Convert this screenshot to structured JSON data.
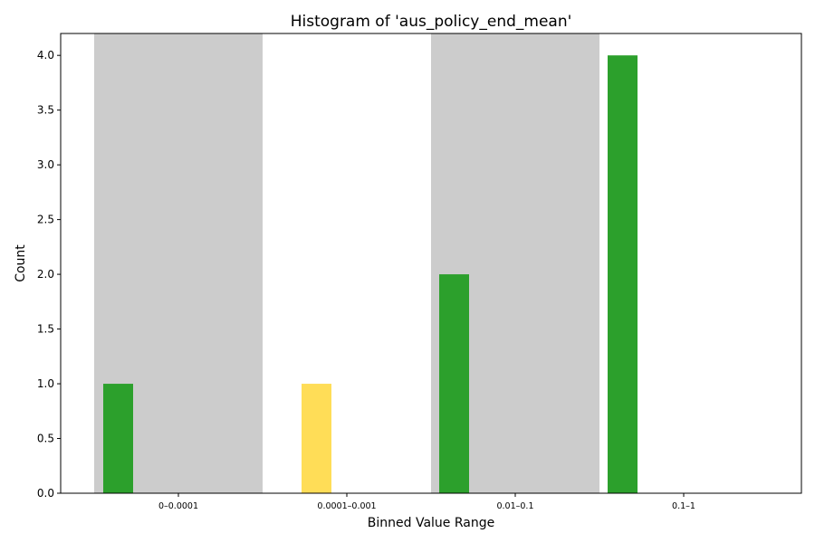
{
  "chart_data": {
    "type": "bar",
    "title": "Histogram of 'aus_policy_end_mean'",
    "xlabel": "Binned Value Range",
    "ylabel": "Count",
    "categories": [
      "0–0.0001",
      "0.0001–0.001",
      "0.01–0.1",
      "0.1–1"
    ],
    "bars": [
      {
        "category": "0–0.0001",
        "value": 1,
        "color": "#2ca02c"
      },
      {
        "category": "0.0001–0.001",
        "value": 1,
        "color": "#ffdd57"
      },
      {
        "category": "0.01–0.1",
        "value": 2,
        "color": "#2ca02c"
      },
      {
        "category": "0.1–1",
        "value": 4,
        "color": "#2ca02c"
      }
    ],
    "shaded_bands": [
      "0–0.0001",
      "0.01–0.1"
    ],
    "band_color": "#cccccc",
    "ylim": [
      0,
      4.2
    ],
    "yticks": [
      "0.0",
      "0.5",
      "1.0",
      "1.5",
      "2.0",
      "2.5",
      "3.0",
      "3.5",
      "4.0"
    ],
    "grid": false,
    "legend": "none"
  }
}
